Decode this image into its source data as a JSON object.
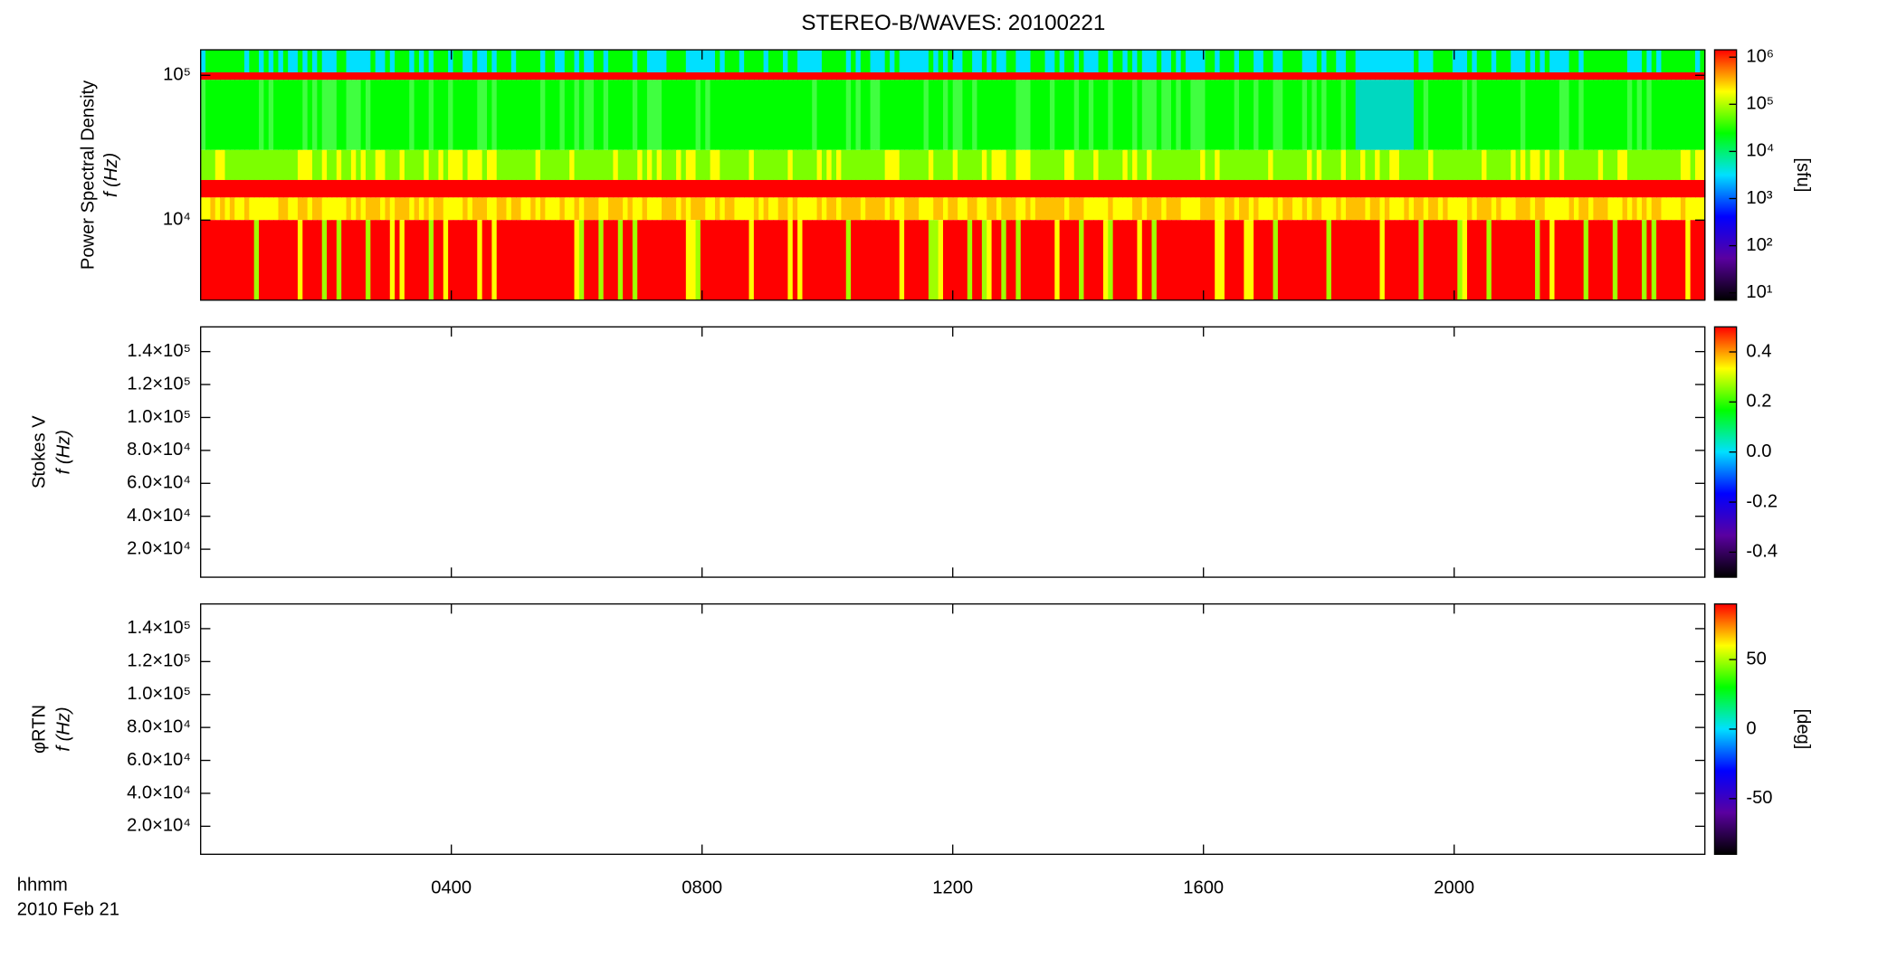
{
  "chart_data": [
    {
      "type": "spectrogram",
      "title": "STEREO-B/WAVES: 20100221",
      "ylabel": [
        "Power Spectral Density",
        "f (Hz)"
      ],
      "ylog": true,
      "ylim": [
        2800,
        150000
      ],
      "yticks": [
        {
          "value": 10000,
          "label": "10⁴"
        },
        {
          "value": 100000,
          "label": "10⁵"
        }
      ],
      "clog": true,
      "clim": [
        7,
        1430000
      ],
      "clabel": "[sfu]",
      "cticks": [
        {
          "value": 10,
          "label": "10¹"
        },
        {
          "value": 100,
          "label": "10²"
        },
        {
          "value": 1000,
          "label": "10³"
        },
        {
          "value": 10000,
          "label": "10⁴"
        },
        {
          "value": 100000,
          "label": "10⁵"
        },
        {
          "value": 1000000,
          "label": "10⁶"
        }
      ],
      "colormap": [
        "#000000",
        "#5a00a0",
        "#0000ff",
        "#00e0ff",
        "#00ff00",
        "#ffff00",
        "#ff0000"
      ]
    },
    {
      "type": "spectrogram",
      "ylabel": [
        "Stokes V",
        "f (Hz)"
      ],
      "ylog": false,
      "ylim": [
        3000,
        155000
      ],
      "yticks": [
        {
          "value": 20000,
          "label": "2.0×10⁴"
        },
        {
          "value": 40000,
          "label": "4.0×10⁴"
        },
        {
          "value": 60000,
          "label": "6.0×10⁴"
        },
        {
          "value": 80000,
          "label": "8.0×10⁴"
        },
        {
          "value": 100000,
          "label": "1.0×10⁵"
        },
        {
          "value": 120000,
          "label": "1.2×10⁵"
        },
        {
          "value": 140000,
          "label": "1.4×10⁵"
        }
      ],
      "clog": false,
      "clim": [
        -0.5,
        0.5
      ],
      "cticks": [
        -0.4,
        -0.2,
        {
          "value": 0,
          "label": "0.0"
        },
        0.2,
        0.4
      ],
      "colormap": [
        "#000000",
        "#5a00a0",
        "#0000ff",
        "#00e0ff",
        "#00ff00",
        "#ffff00",
        "#ff0000"
      ]
    },
    {
      "type": "spectrogram",
      "ylabel": [
        "φRTN",
        "f (Hz)"
      ],
      "ylog": false,
      "ylim": [
        3000,
        155000
      ],
      "yticks": [
        {
          "value": 20000,
          "label": "2.0×10⁴"
        },
        {
          "value": 40000,
          "label": "4.0×10⁴"
        },
        {
          "value": 60000,
          "label": "6.0×10⁴"
        },
        {
          "value": 80000,
          "label": "8.0×10⁴"
        },
        {
          "value": 100000,
          "label": "1.0×10⁵"
        },
        {
          "value": 120000,
          "label": "1.2×10⁵"
        },
        {
          "value": 140000,
          "label": "1.4×10⁵"
        }
      ],
      "clog": false,
      "clim": [
        -90,
        90
      ],
      "clabel": "[deg]",
      "cticks": [
        -50,
        0,
        50
      ],
      "colormap": [
        "#000000",
        "#5a00a0",
        "#0000ff",
        "#00e0ff",
        "#00ff00",
        "#ffff00",
        "#ff0000"
      ],
      "xlabel": "hhmm",
      "date": "2010 Feb 21",
      "xlim": [
        0,
        24
      ],
      "xticks": [
        {
          "value": 4,
          "label": "0400"
        },
        {
          "value": 8,
          "label": "0800"
        },
        {
          "value": 12,
          "label": "1200"
        },
        {
          "value": 16,
          "label": "1600"
        },
        {
          "value": 20,
          "label": "2000"
        }
      ]
    }
  ]
}
